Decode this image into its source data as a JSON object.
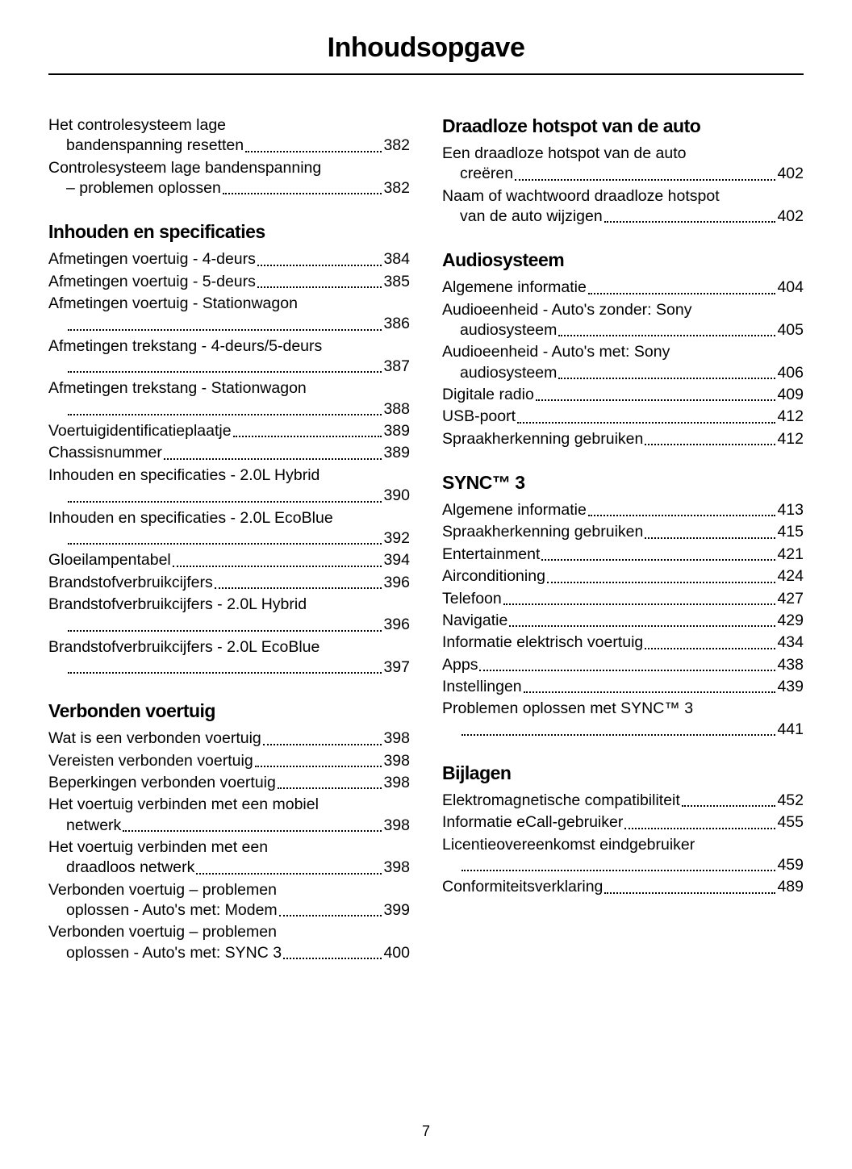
{
  "page_title": "Inhoudsopgave",
  "page_number": "7",
  "colors": {
    "text": "#000000",
    "background": "#ffffff"
  },
  "typography": {
    "title_fontsize": 34,
    "section_fontsize": 23,
    "entry_fontsize": 19.5,
    "font_family": "Arial"
  },
  "left_column": [
    {
      "type": "entries_nohead",
      "items": [
        {
          "text_l1": "Het controlesysteem lage",
          "text_l2": "bandenspanning resetten",
          "page": "382"
        },
        {
          "text_l1": "Controlesysteem lage bandenspanning",
          "text_l2": "– problemen oplossen",
          "page": "382"
        }
      ]
    },
    {
      "type": "section",
      "title": "Inhouden en specificaties",
      "items": [
        {
          "text": "Afmetingen voertuig - 4-deurs",
          "page": "384"
        },
        {
          "text": "Afmetingen voertuig - 5-deurs",
          "page": "385"
        },
        {
          "text_l1": "Afmetingen voertuig - Stationwagon",
          "text_l2": "",
          "page": "386"
        },
        {
          "text_l1": "Afmetingen trekstang - 4-deurs/5-deurs",
          "text_l2": "",
          "page": "387"
        },
        {
          "text_l1": "Afmetingen trekstang - Stationwagon",
          "text_l2": "",
          "page": "388"
        },
        {
          "text": "Voertuigidentificatieplaatje",
          "page": "389"
        },
        {
          "text": "Chassisnummer",
          "page": "389"
        },
        {
          "text_l1": "Inhouden en specificaties - 2.0L Hybrid",
          "text_l2": "",
          "page": "390"
        },
        {
          "text_l1": "Inhouden en specificaties - 2.0L EcoBlue",
          "text_l2": "",
          "page": "392"
        },
        {
          "text": "Gloeilampentabel",
          "page": "394"
        },
        {
          "text": "Brandstofverbruikcijfers",
          "page": "396"
        },
        {
          "text_l1": "Brandstofverbruikcijfers - 2.0L Hybrid",
          "text_l2": "",
          "page": "396"
        },
        {
          "text_l1": "Brandstofverbruikcijfers - 2.0L EcoBlue",
          "text_l2": "",
          "page": "397"
        }
      ]
    },
    {
      "type": "section",
      "title": "Verbonden voertuig",
      "items": [
        {
          "text": "Wat is een verbonden voertuig",
          "page": "398"
        },
        {
          "text": "Vereisten verbonden voertuig",
          "page": "398"
        },
        {
          "text": "Beperkingen verbonden voertuig",
          "page": "398"
        },
        {
          "text_l1": "Het voertuig verbinden met een mobiel",
          "text_l2": "netwerk",
          "page": "398"
        },
        {
          "text_l1": "Het voertuig verbinden met een",
          "text_l2": "draadloos netwerk",
          "page": "398"
        },
        {
          "text_l1": "Verbonden voertuig – problemen",
          "text_l2": "oplossen - Auto's met: Modem",
          "page": "399"
        },
        {
          "text_l1": "Verbonden voertuig – problemen",
          "text_l2": "oplossen - Auto's met: SYNC 3",
          "page": "400"
        }
      ]
    }
  ],
  "right_column": [
    {
      "type": "section",
      "title": "Draadloze hotspot van de auto",
      "items": [
        {
          "text_l1": "Een draadloze hotspot van de auto",
          "text_l2": "creëren",
          "page": "402"
        },
        {
          "text_l1": "Naam of wachtwoord draadloze hotspot",
          "text_l2": "van de auto wijzigen",
          "page": "402"
        }
      ]
    },
    {
      "type": "section",
      "title": "Audiosysteem",
      "items": [
        {
          "text": "Algemene informatie",
          "page": "404"
        },
        {
          "text_l1": "Audioeenheid - Auto's zonder: Sony",
          "text_l2": "audiosysteem",
          "page": "405"
        },
        {
          "text_l1": "Audioeenheid - Auto's met: Sony",
          "text_l2": "audiosysteem",
          "page": "406"
        },
        {
          "text": "Digitale radio",
          "page": "409"
        },
        {
          "text": "USB-poort",
          "page": "412"
        },
        {
          "text": "Spraakherkenning gebruiken",
          "page": "412"
        }
      ]
    },
    {
      "type": "section",
      "title": "SYNC™ 3",
      "items": [
        {
          "text": "Algemene informatie",
          "page": "413"
        },
        {
          "text": "Spraakherkenning gebruiken",
          "page": "415"
        },
        {
          "text": "Entertainment",
          "page": "421"
        },
        {
          "text": "Airconditioning",
          "page": "424"
        },
        {
          "text": "Telefoon",
          "page": "427"
        },
        {
          "text": "Navigatie",
          "page": "429"
        },
        {
          "text": "Informatie elektrisch voertuig",
          "page": "434"
        },
        {
          "text": "Apps",
          "page": "438"
        },
        {
          "text": "Instellingen",
          "page": "439"
        },
        {
          "text_l1": "Problemen oplossen met SYNC™ 3",
          "text_l2": "",
          "page": "441"
        }
      ]
    },
    {
      "type": "section",
      "title": "Bijlagen",
      "items": [
        {
          "text": "Elektromagnetische compatibiliteit",
          "page": "452"
        },
        {
          "text": "Informatie eCall-gebruiker",
          "page": "455"
        },
        {
          "text_l1": "Licentieovereenkomst eindgebruiker",
          "text_l2": "",
          "page": "459"
        },
        {
          "text": "Conformiteitsverklaring",
          "page": "489"
        }
      ]
    }
  ]
}
